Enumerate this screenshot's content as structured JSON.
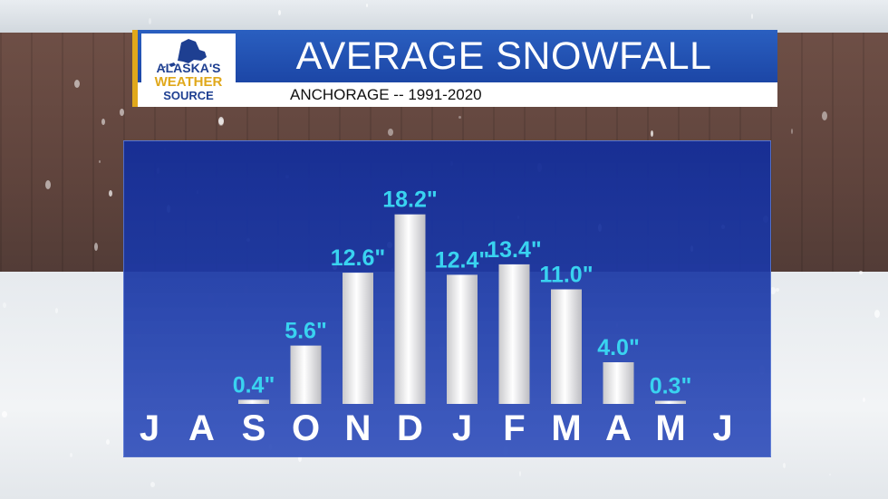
{
  "header": {
    "title": "AVERAGE SNOWFALL",
    "subtitle": "ANCHORAGE -- 1991-2020"
  },
  "logo": {
    "line1": "ALASKA'S",
    "line2": "WEATHER",
    "line3": "SOURCE",
    "icon": "alaska-map-icon"
  },
  "colors": {
    "panel": "#1c3aa0",
    "bar": "#e8e8ea",
    "value_label": "#39d3f0",
    "month_label": "#ffffff",
    "banner": "#2355b5",
    "accent": "#e0a81b"
  },
  "chart_data": {
    "type": "bar",
    "categories": [
      "J",
      "A",
      "S",
      "O",
      "N",
      "D",
      "J",
      "F",
      "M",
      "A",
      "M",
      "J"
    ],
    "values": [
      null,
      null,
      0.4,
      5.6,
      12.6,
      18.2,
      12.4,
      13.4,
      11.0,
      4.0,
      0.3,
      null
    ],
    "value_labels": [
      "",
      "",
      "0.4\"",
      "5.6\"",
      "12.6\"",
      "18.2\"",
      "12.4\"",
      "13.4\"",
      "11.0\"",
      "4.0\"",
      "0.3\"",
      ""
    ],
    "ylim": [
      0,
      20
    ],
    "grid": false,
    "legend": "none"
  }
}
